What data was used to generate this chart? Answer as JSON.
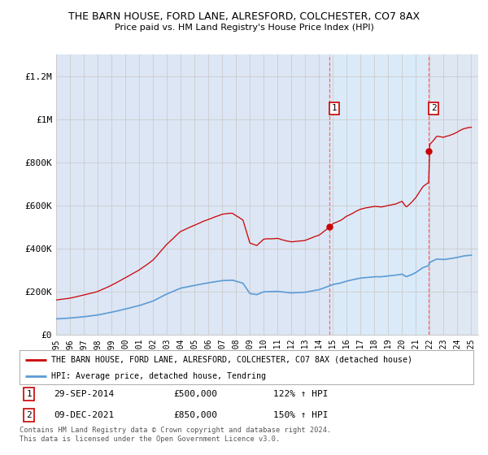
{
  "title": "THE BARN HOUSE, FORD LANE, ALRESFORD, COLCHESTER, CO7 8AX",
  "subtitle": "Price paid vs. HM Land Registry's House Price Index (HPI)",
  "ylabel_ticks": [
    "£0",
    "£200K",
    "£400K",
    "£600K",
    "£800K",
    "£1M",
    "£1.2M"
  ],
  "ytick_values": [
    0,
    200000,
    400000,
    600000,
    800000,
    1000000,
    1200000
  ],
  "ylim": [
    0,
    1300000
  ],
  "xlim_start": 1995.0,
  "xlim_end": 2025.5,
  "hpi_color": "#5b9bd5",
  "price_color": "#cc0000",
  "background_plot": "#dce6f5",
  "background_between": "#dce6f5",
  "background_after": "#e8e8e8",
  "background_fig": "#ffffff",
  "grid_color": "#ffffff",
  "vline_color": "#ff6666",
  "legend_label_price": "THE BARN HOUSE, FORD LANE, ALRESFORD, COLCHESTER, CO7 8AX (detached house)",
  "legend_label_hpi": "HPI: Average price, detached house, Tendring",
  "sale1_label": "1",
  "sale1_date": "29-SEP-2014",
  "sale1_price": "£500,000",
  "sale1_hpi": "122% ↑ HPI",
  "sale1_x": 2014.75,
  "sale1_y": 500000,
  "sale2_label": "2",
  "sale2_date": "09-DEC-2021",
  "sale2_price": "£850,000",
  "sale2_hpi": "150% ↑ HPI",
  "sale2_x": 2021.92,
  "sale2_y": 850000,
  "footer": "Contains HM Land Registry data © Crown copyright and database right 2024.\nThis data is licensed under the Open Government Licence v3.0.",
  "xtick_years": [
    1995,
    1996,
    1997,
    1998,
    1999,
    2000,
    2001,
    2002,
    2003,
    2004,
    2005,
    2006,
    2007,
    2008,
    2009,
    2010,
    2011,
    2012,
    2013,
    2014,
    2015,
    2016,
    2017,
    2018,
    2019,
    2020,
    2021,
    2022,
    2023,
    2024,
    2025
  ]
}
